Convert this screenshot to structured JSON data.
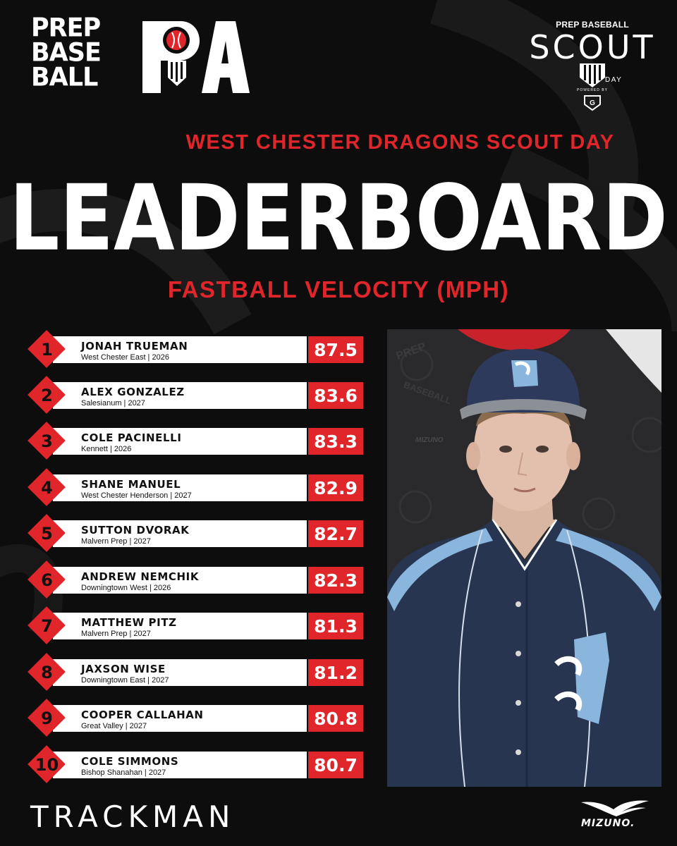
{
  "brand": {
    "pbr_lines": [
      "PREP",
      "BASE",
      "BALL"
    ],
    "scout_top": "PREP BASEBALL",
    "scout_big": "SCOUT",
    "scout_day": "DAY",
    "powered_by": "POWERED BY",
    "powered_logo": "G"
  },
  "header": {
    "event_title": "WEST CHESTER DRAGONS SCOUT DAY",
    "main_title": "LEADERBOARD",
    "subtitle": "FASTBALL VELOCITY (MPH)"
  },
  "leaders": [
    {
      "rank": "1",
      "name": "JONAH TRUEMAN",
      "school": "West Chester East | 2026",
      "velocity": "87.5"
    },
    {
      "rank": "2",
      "name": "ALEX GONZALEZ",
      "school": "Salesianum | 2027",
      "velocity": "83.6"
    },
    {
      "rank": "3",
      "name": "COLE PACINELLI",
      "school": "Kennett | 2026",
      "velocity": "83.3"
    },
    {
      "rank": "4",
      "name": "SHANE MANUEL",
      "school": "West Chester Henderson | 2027",
      "velocity": "82.9"
    },
    {
      "rank": "5",
      "name": "SUTTON DVORAK",
      "school": "Malvern Prep | 2027",
      "velocity": "82.7"
    },
    {
      "rank": "6",
      "name": "ANDREW NEMCHIK",
      "school": "Downingtown West | 2026",
      "velocity": "82.3"
    },
    {
      "rank": "7",
      "name": "MATTHEW PITZ",
      "school": "Malvern Prep | 2027",
      "velocity": "81.3"
    },
    {
      "rank": "8",
      "name": "JAXSON WISE",
      "school": "Downingtown East | 2027",
      "velocity": "81.2"
    },
    {
      "rank": "9",
      "name": "COOPER CALLAHAN",
      "school": "Great Valley | 2027",
      "velocity": "80.8"
    },
    {
      "rank": "10",
      "name": "COLE SIMMONS",
      "school": "Bishop Shanahan | 2027",
      "velocity": "80.7"
    }
  ],
  "photo": {
    "backdrop_word_1": "PREP",
    "backdrop_word_2": "BASEBALL",
    "backdrop_word_3": "MIZUNO"
  },
  "sponsors": {
    "trackman": "TRACKMAN",
    "mizuno": "MIZUNO."
  },
  "colors": {
    "accent_red": "#e0262b",
    "background": "#0d0d0d",
    "jersey_navy": "#273551",
    "jersey_light_blue": "#8ab6dd"
  }
}
